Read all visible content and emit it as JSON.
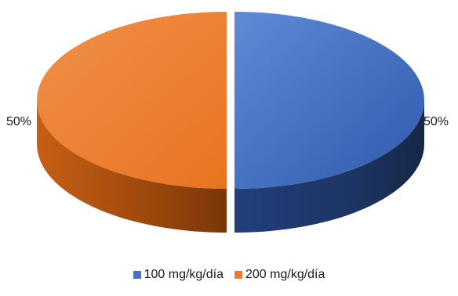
{
  "chart_data": {
    "type": "pie",
    "title": "",
    "categories": [
      "100 mg/kg/día",
      "200 mg/kg/día"
    ],
    "values": [
      50,
      50
    ],
    "data_labels": [
      "50%",
      "50%"
    ],
    "colors": [
      "#4472C4",
      "#ED7D31"
    ],
    "style": "3d-exploded",
    "legend_position": "bottom"
  }
}
